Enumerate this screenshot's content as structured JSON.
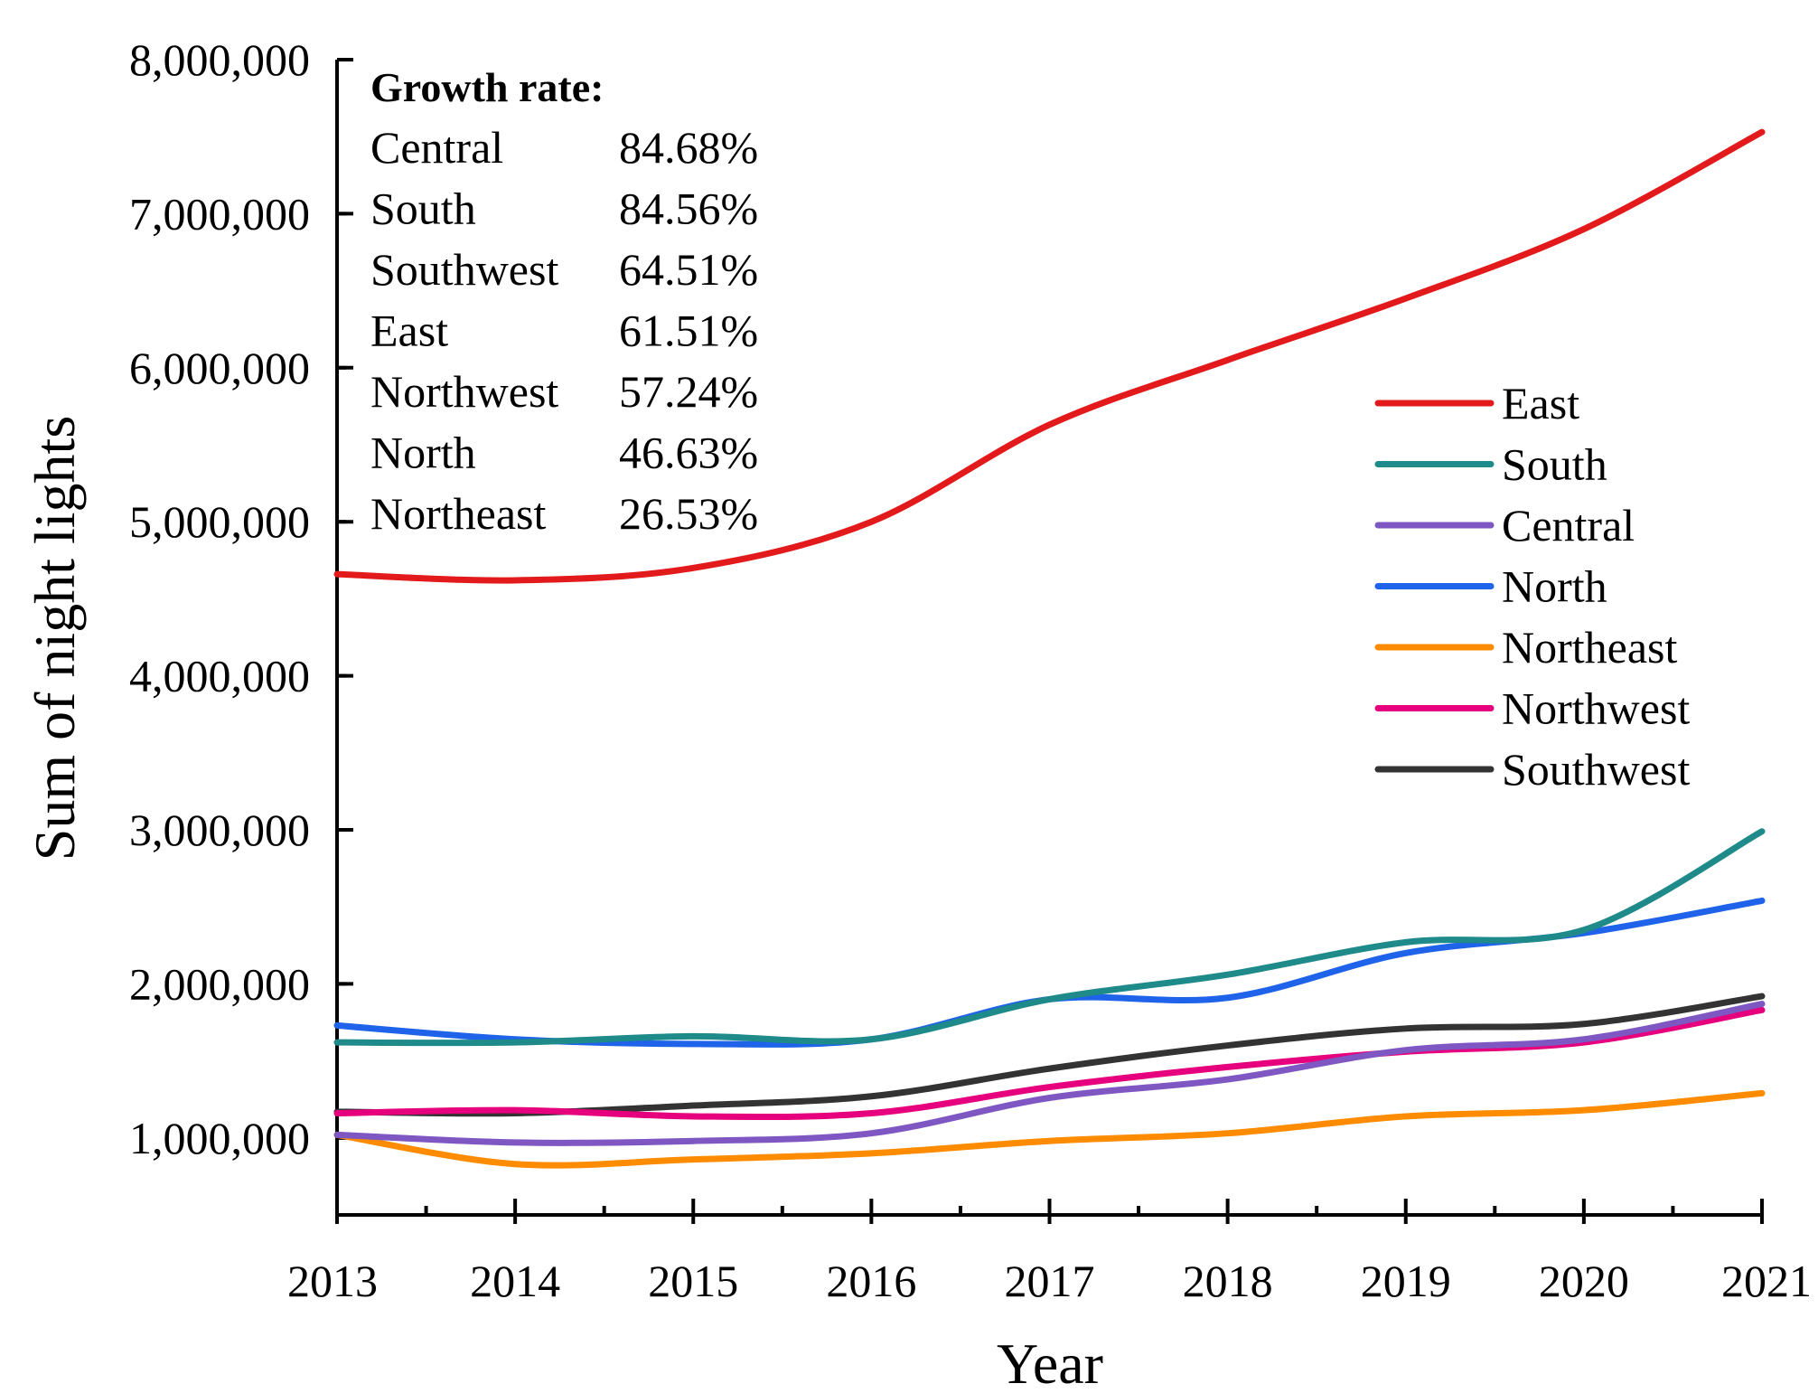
{
  "chart_data": {
    "type": "line",
    "title": "",
    "xlabel": "Year",
    "ylabel": "Sum of night lights",
    "x": [
      2013,
      2014,
      2015,
      2016,
      2017,
      2018,
      2019,
      2020,
      2021
    ],
    "x_tick_labels": [
      "2013",
      "2014",
      "2015",
      "2016",
      "2017",
      "2018",
      "2019",
      "2020",
      "2021"
    ],
    "ylim": [
      500000,
      8000000
    ],
    "y_ticks": [
      1000000,
      2000000,
      3000000,
      4000000,
      5000000,
      6000000,
      7000000,
      8000000
    ],
    "y_tick_labels": [
      "1,000,000",
      "2,000,000",
      "3,000,000",
      "4,000,000",
      "5,000,000",
      "6,000,000",
      "7,000,000",
      "8,000,000"
    ],
    "grid": false,
    "legend_position": "right",
    "series": [
      {
        "name": "East",
        "color": "#e31a1c",
        "values": [
          4660000,
          4620000,
          4700000,
          5000000,
          5630000,
          6050000,
          6450000,
          6900000,
          7530000
        ]
      },
      {
        "name": "South",
        "color": "#1f8a8a",
        "values": [
          1620000,
          1620000,
          1660000,
          1640000,
          1900000,
          2060000,
          2270000,
          2350000,
          2990000
        ]
      },
      {
        "name": "Central",
        "color": "#7e57c2",
        "values": [
          1020000,
          970000,
          980000,
          1030000,
          1260000,
          1380000,
          1570000,
          1640000,
          1870000
        ]
      },
      {
        "name": "North",
        "color": "#1e63e9",
        "values": [
          1730000,
          1640000,
          1610000,
          1640000,
          1900000,
          1910000,
          2200000,
          2330000,
          2540000
        ]
      },
      {
        "name": "Northeast",
        "color": "#ff8c00",
        "values": [
          1020000,
          830000,
          860000,
          900000,
          980000,
          1030000,
          1140000,
          1180000,
          1290000
        ]
      },
      {
        "name": "Northwest",
        "color": "#e6007e",
        "values": [
          1160000,
          1180000,
          1140000,
          1160000,
          1330000,
          1460000,
          1560000,
          1620000,
          1830000
        ]
      },
      {
        "name": "Southwest",
        "color": "#333333",
        "values": [
          1170000,
          1160000,
          1210000,
          1270000,
          1450000,
          1600000,
          1710000,
          1740000,
          1920000
        ]
      }
    ],
    "annotation": {
      "title": "Growth rate:",
      "rows": [
        {
          "region": "Central",
          "rate": "84.68%"
        },
        {
          "region": "South",
          "rate": "84.56%"
        },
        {
          "region": "Southwest",
          "rate": "64.51%"
        },
        {
          "region": "East",
          "rate": "61.51%"
        },
        {
          "region": "Northwest",
          "rate": "57.24%"
        },
        {
          "region": "North",
          "rate": "46.63%"
        },
        {
          "region": "Northeast",
          "rate": "26.53%"
        }
      ]
    }
  }
}
